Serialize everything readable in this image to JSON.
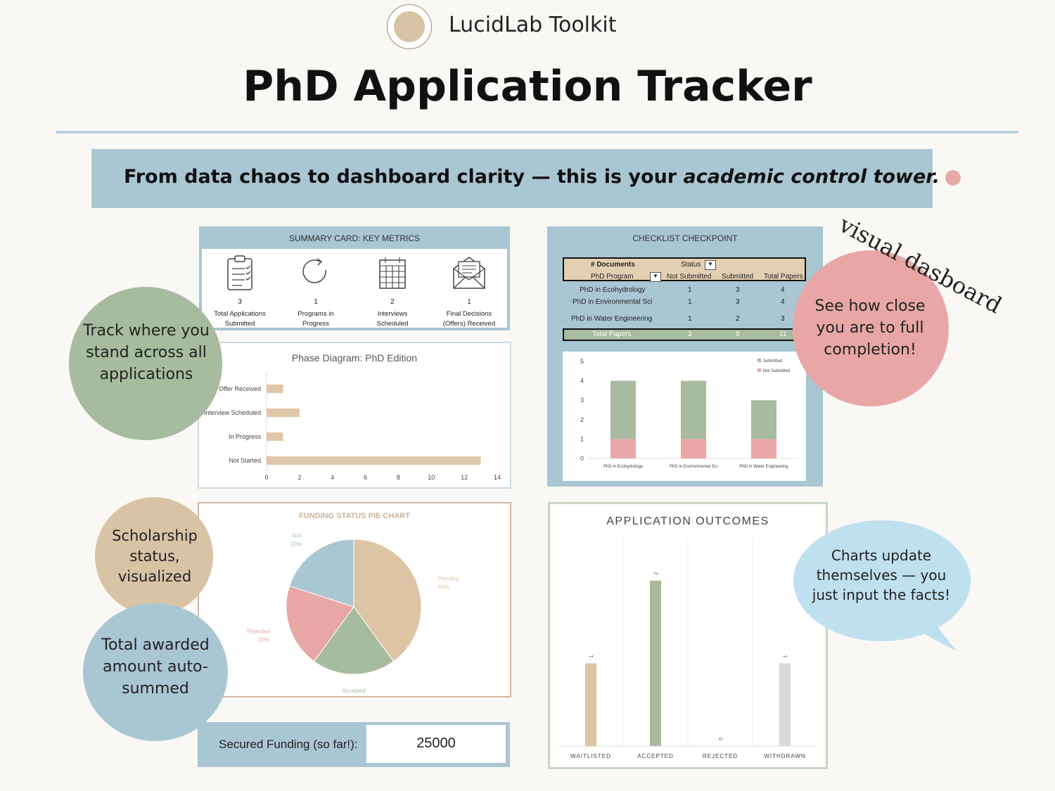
{
  "brand": {
    "name": "LucidLab Toolkit"
  },
  "page_title": "PhD Application Tracker",
  "banner": {
    "text_start": "From data chaos to dashboard clarity — this is your ",
    "text_em": "academic control tower.",
    "icon": "brain-icon"
  },
  "summary_card": {
    "title": "SUMMARY CARD: KEY METRICS",
    "metrics": [
      {
        "value": "3",
        "label1": "Total Applications",
        "label2": "Submitted",
        "icon": "clipboard-icon"
      },
      {
        "value": "1",
        "label1": "Programs in",
        "label2": "Progress",
        "icon": "refresh-icon"
      },
      {
        "value": "2",
        "label1": "Interviews",
        "label2": "Scheduled",
        "icon": "calendar-icon"
      },
      {
        "value": "1",
        "label1": "Final Decisions",
        "label2": "(Offers) Received",
        "icon": "envelope-icon"
      }
    ]
  },
  "checklist": {
    "title": "CHECKLIST CHECKPOINT",
    "header1": {
      "a": "# Documents",
      "b": "Status"
    },
    "header2": {
      "a": "PhD Program",
      "b": "Not Submitted",
      "c": "Submitted",
      "d": "Total Papers"
    },
    "rows": [
      {
        "program": "PhD in Ecohydrology",
        "not_submitted": "1",
        "submitted": "3",
        "total": "4"
      },
      {
        "program": "PhD in Environmental Sci",
        "not_submitted": "1",
        "submitted": "3",
        "total": "4"
      },
      {
        "program": "PhD in Water Engineering",
        "not_submitted": "1",
        "submitted": "2",
        "total": "3"
      }
    ],
    "total_row": {
      "label": "Total Papers",
      "not_submitted": "3",
      "submitted": "8",
      "total": "11"
    }
  },
  "callouts": {
    "track": "Track where you stand across all applications",
    "completion": "See how close you are to full completion!",
    "visual": "visual dasboard",
    "scholarship": "Scholarship status, visualized",
    "awarded": "Total awarded amount auto-summed",
    "charts_update": "Charts update themselves — you just input the facts!"
  },
  "secured": {
    "label": "Secured Funding (so far!):",
    "value": "25000"
  },
  "colors": {
    "blue": "#a9c6d3",
    "green": "#a7bb9f",
    "pink": "#e8a7a6",
    "tan": "#d9c3a5",
    "gray": "#d9d9d9"
  },
  "chart_data": [
    {
      "type": "bar",
      "orientation": "horizontal",
      "title": "Phase Diagram: PhD Edition",
      "categories": [
        "Offer Received",
        "Interview Scheduled",
        "In Progress",
        "Not Started"
      ],
      "values": [
        1,
        2,
        1,
        13
      ],
      "xlim": [
        0,
        14
      ],
      "xticks": [
        "0",
        "2",
        "4",
        "6",
        "8",
        "10",
        "12",
        "14"
      ],
      "color": "#dfc7aa"
    },
    {
      "type": "bar",
      "stacked": true,
      "categories": [
        "PhD in Ecohydrology",
        "PhD in Environmental Sci",
        "PhD in Water Engineering"
      ],
      "series": [
        {
          "name": "Not Submitted",
          "values": [
            1,
            1,
            1
          ],
          "color": "#e8a7a6"
        },
        {
          "name": "Submitted",
          "values": [
            3,
            3,
            2
          ],
          "color": "#a7bb9f"
        }
      ],
      "ylim": [
        0,
        5
      ],
      "yticks": [
        "0",
        "1",
        "2",
        "3",
        "4",
        "5"
      ],
      "legend": "top-right"
    },
    {
      "type": "pie",
      "title": "FUNDING STATUS PIE CHART",
      "slices": [
        {
          "label": "Pending",
          "value": 40,
          "pct": "40%",
          "color": "#dcc4a4"
        },
        {
          "label": "Accepted",
          "value": 20,
          "pct": "20%",
          "color": "#a7bb9f"
        },
        {
          "label": "Rejected",
          "value": 20,
          "pct": "20%",
          "color": "#e8a7a6"
        },
        {
          "label": "N/A",
          "value": 20,
          "pct": "20%",
          "color": "#a9c6d3"
        }
      ]
    },
    {
      "type": "bar",
      "title": "APPLICATION OUTCOMES",
      "categories": [
        "WAITLISTED",
        "ACCEPTED",
        "REJECTED",
        "WITHDRAWN"
      ],
      "values": [
        1,
        2,
        0,
        1
      ],
      "colors": [
        "#dcc4a4",
        "#a7bb9f",
        "#e8a7a6",
        "#d9d9d9"
      ],
      "ylim": [
        0,
        2.5
      ]
    }
  ]
}
